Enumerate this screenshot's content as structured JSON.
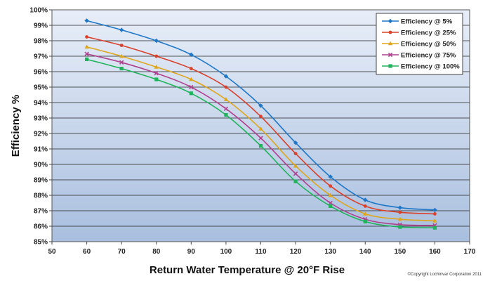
{
  "chart_data": {
    "type": "line",
    "title": "",
    "xlabel": "Return Water Temperature @ 20°F Rise",
    "ylabel": "Efficiency %",
    "xlim": [
      50,
      170
    ],
    "ylim": [
      85,
      100
    ],
    "x_ticks": [
      50,
      60,
      70,
      80,
      90,
      100,
      110,
      120,
      130,
      140,
      150,
      160,
      170
    ],
    "y_ticks": [
      "85%",
      "86%",
      "87%",
      "88%",
      "89%",
      "90%",
      "91%",
      "92%",
      "93%",
      "94%",
      "95%",
      "96%",
      "97%",
      "98%",
      "99%",
      "100%"
    ],
    "grid": true,
    "legend_position": "top-right",
    "x": [
      60,
      70,
      80,
      90,
      100,
      110,
      120,
      130,
      140,
      150,
      160
    ],
    "series": [
      {
        "name": "Efficiency @ 5%",
        "color": "#1f77c8",
        "marker": "diamond",
        "values": [
          99.3,
          98.7,
          98.0,
          97.1,
          95.7,
          93.8,
          91.4,
          89.2,
          87.7,
          87.2,
          87.05
        ]
      },
      {
        "name": "Efficiency @ 25%",
        "color": "#d9412b",
        "marker": "circle",
        "values": [
          98.25,
          97.7,
          97.0,
          96.2,
          95.0,
          93.1,
          90.7,
          88.6,
          87.3,
          86.9,
          86.8
        ]
      },
      {
        "name": "Efficiency @ 50%",
        "color": "#e0a61a",
        "marker": "triangle",
        "values": [
          97.6,
          97.0,
          96.3,
          95.5,
          94.2,
          92.3,
          89.9,
          88.0,
          86.8,
          86.45,
          86.35
        ]
      },
      {
        "name": "Efficiency @ 75%",
        "color": "#b0428f",
        "marker": "x",
        "values": [
          97.15,
          96.6,
          95.9,
          95.0,
          93.6,
          91.7,
          89.4,
          87.5,
          86.45,
          86.1,
          86.05
        ]
      },
      {
        "name": "Efficiency @ 100%",
        "color": "#1fb35a",
        "marker": "square",
        "values": [
          96.8,
          96.2,
          95.5,
          94.6,
          93.2,
          91.2,
          88.9,
          87.3,
          86.3,
          85.95,
          85.9
        ]
      }
    ],
    "annotation": "©Copyright Lochinvar Corporation 2011"
  }
}
